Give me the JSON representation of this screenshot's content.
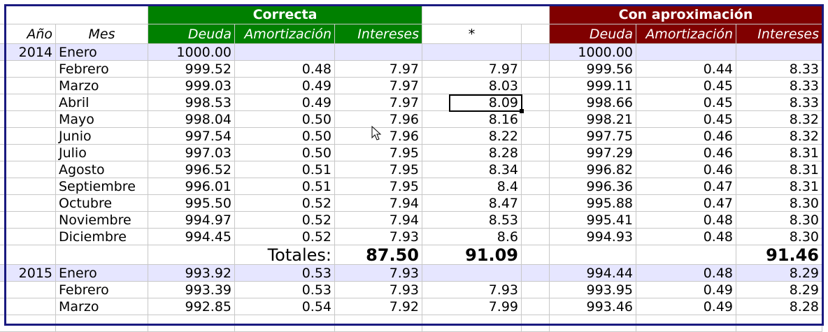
{
  "headers": {
    "group_correcta": "Correcta",
    "group_aprox": "Con aproximación",
    "col_anio": "Año",
    "col_mes": "Mes",
    "col_deuda": "Deuda",
    "col_amort": "Amortización",
    "col_intereses": "Intereses",
    "col_star": "*",
    "col_deuda2": "Deuda",
    "col_amort2": "Amortización",
    "col_intereses2": "Intereses"
  },
  "rows": [
    {
      "anio": "2014",
      "mes": "Enero",
      "deuda": "1000.00",
      "amort": "",
      "int": "",
      "star": "",
      "deuda2": "1000.00",
      "amort2": "",
      "int2": ""
    },
    {
      "anio": "",
      "mes": "Febrero",
      "deuda": "999.52",
      "amort": "0.48",
      "int": "7.97",
      "star": "7.97",
      "deuda2": "999.56",
      "amort2": "0.44",
      "int2": "8.33"
    },
    {
      "anio": "",
      "mes": "Marzo",
      "deuda": "999.03",
      "amort": "0.49",
      "int": "7.97",
      "star": "8.03",
      "deuda2": "999.11",
      "amort2": "0.45",
      "int2": "8.33"
    },
    {
      "anio": "",
      "mes": "Abril",
      "deuda": "998.53",
      "amort": "0.49",
      "int": "7.97",
      "star": "8.09",
      "deuda2": "998.66",
      "amort2": "0.45",
      "int2": "8.33"
    },
    {
      "anio": "",
      "mes": "Mayo",
      "deuda": "998.04",
      "amort": "0.50",
      "int": "7.96",
      "star": "8.16",
      "deuda2": "998.21",
      "amort2": "0.45",
      "int2": "8.32"
    },
    {
      "anio": "",
      "mes": "Junio",
      "deuda": "997.54",
      "amort": "0.50",
      "int": "7.96",
      "star": "8.22",
      "deuda2": "997.75",
      "amort2": "0.46",
      "int2": "8.32"
    },
    {
      "anio": "",
      "mes": "Julio",
      "deuda": "997.03",
      "amort": "0.50",
      "int": "7.95",
      "star": "8.28",
      "deuda2": "997.29",
      "amort2": "0.46",
      "int2": "8.31"
    },
    {
      "anio": "",
      "mes": "Agosto",
      "deuda": "996.52",
      "amort": "0.51",
      "int": "7.95",
      "star": "8.34",
      "deuda2": "996.82",
      "amort2": "0.46",
      "int2": "8.31"
    },
    {
      "anio": "",
      "mes": "Septiembre",
      "deuda": "996.01",
      "amort": "0.51",
      "int": "7.95",
      "star": "8.4",
      "deuda2": "996.36",
      "amort2": "0.47",
      "int2": "8.31"
    },
    {
      "anio": "",
      "mes": "Octubre",
      "deuda": "995.50",
      "amort": "0.52",
      "int": "7.94",
      "star": "8.47",
      "deuda2": "995.88",
      "amort2": "0.47",
      "int2": "8.30"
    },
    {
      "anio": "",
      "mes": "Noviembre",
      "deuda": "994.97",
      "amort": "0.52",
      "int": "7.94",
      "star": "8.53",
      "deuda2": "995.41",
      "amort2": "0.48",
      "int2": "8.30"
    },
    {
      "anio": "",
      "mes": "Diciembre",
      "deuda": "994.45",
      "amort": "0.52",
      "int": "7.93",
      "star": "8.6",
      "deuda2": "994.93",
      "amort2": "0.48",
      "int2": "8.30"
    }
  ],
  "totals": {
    "label": "Totales:",
    "int": "87.50",
    "star": "91.09",
    "int2": "91.46"
  },
  "rows2015": [
    {
      "anio": "2015",
      "mes": "Enero",
      "deuda": "993.92",
      "amort": "0.53",
      "int": "7.93",
      "star": "",
      "deuda2": "994.44",
      "amort2": "0.48",
      "int2": "8.29"
    },
    {
      "anio": "",
      "mes": "Febrero",
      "deuda": "993.39",
      "amort": "0.53",
      "int": "7.93",
      "star": "7.93",
      "deuda2": "993.95",
      "amort2": "0.49",
      "int2": "8.29"
    },
    {
      "anio": "",
      "mes": "Marzo",
      "deuda": "992.85",
      "amort": "0.54",
      "int": "7.92",
      "star": "7.99",
      "deuda2": "993.46",
      "amort2": "0.49",
      "int2": "8.28"
    }
  ],
  "colors": {
    "green_header": "#008000",
    "red_header": "#800000",
    "band": "#e6e6ff",
    "frame": "#1a1a80"
  }
}
